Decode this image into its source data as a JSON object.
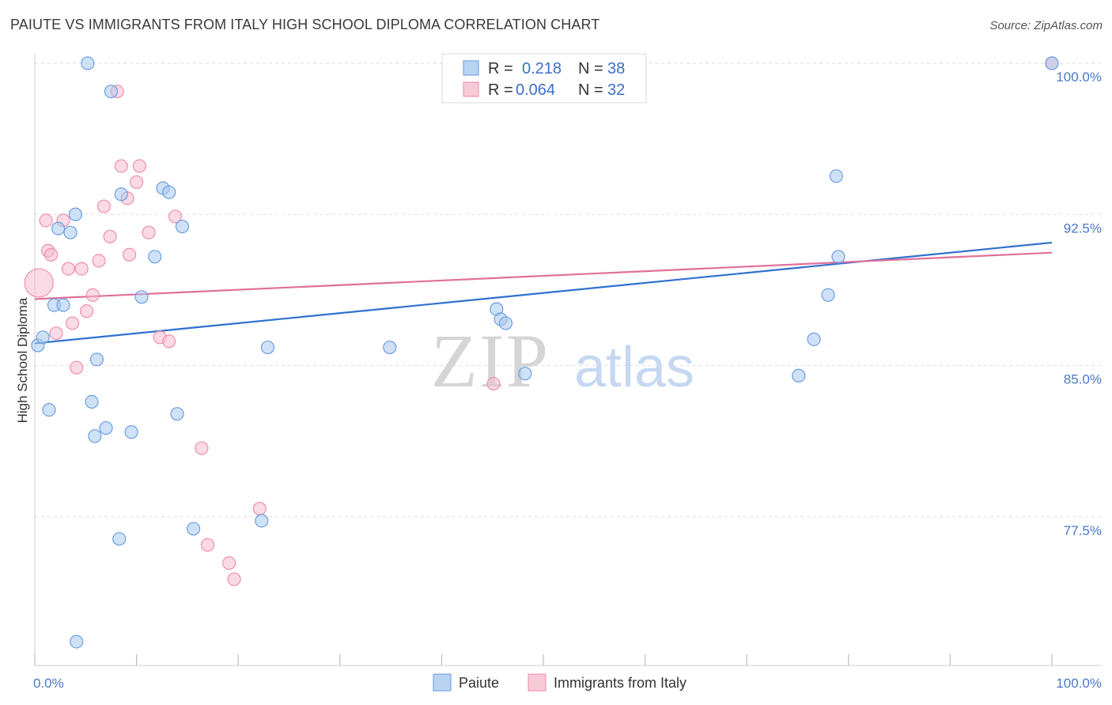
{
  "title": "PAIUTE VS IMMIGRANTS FROM ITALY HIGH SCHOOL DIPLOMA CORRELATION CHART",
  "source": "Source: ZipAtlas.com",
  "watermark": {
    "zip": "ZIP",
    "atlas": "atlas"
  },
  "chart_data": {
    "type": "scatter",
    "title": "PAIUTE VS IMMIGRANTS FROM ITALY HIGH SCHOOL DIPLOMA CORRELATION CHART",
    "xlabel": "",
    "ylabel": "High School Diploma",
    "xlim": [
      0,
      100
    ],
    "ylim": [
      71.0,
      100.8
    ],
    "x_tick_labels": [
      {
        "value": 0,
        "label": "0.0%"
      },
      {
        "value": 100,
        "label": "100.0%"
      }
    ],
    "x_minor_ticks": [
      0,
      10,
      20,
      30,
      40,
      50,
      60,
      70,
      80,
      90,
      100
    ],
    "y_ticks": [
      {
        "value": 100.0,
        "label": "100.0%"
      },
      {
        "value": 92.5,
        "label": "92.5%"
      },
      {
        "value": 85.0,
        "label": "85.0%"
      },
      {
        "value": 77.5,
        "label": "77.5%"
      }
    ],
    "grid": true,
    "legend": {
      "placement": "top-center",
      "rows": [
        {
          "r_label": "R =",
          "r_value": "0.218",
          "n_label": "N =",
          "n_value": "38"
        },
        {
          "r_label": "R =",
          "r_value": "0.064",
          "n_label": "N =",
          "n_value": "32"
        }
      ]
    },
    "series": [
      {
        "name": "Paiute",
        "color": "#a8c8ef",
        "stroke": "#6d9ee0",
        "line_color": "#2f6fcf",
        "r": 0.218,
        "n": 38,
        "trend": {
          "x": [
            0,
            100
          ],
          "y": [
            86.1,
            91.1
          ]
        },
        "points": [
          [
            0.3,
            86.0
          ],
          [
            0.8,
            86.4
          ],
          [
            1.4,
            82.8
          ],
          [
            1.9,
            88.0
          ],
          [
            2.3,
            91.8
          ],
          [
            2.8,
            88.0
          ],
          [
            3.5,
            91.6
          ],
          [
            4.0,
            92.5
          ],
          [
            4.1,
            71.3
          ],
          [
            5.2,
            100.0
          ],
          [
            5.6,
            83.2
          ],
          [
            5.9,
            81.5
          ],
          [
            6.1,
            85.3
          ],
          [
            7.0,
            81.9
          ],
          [
            7.5,
            98.6
          ],
          [
            8.3,
            76.4
          ],
          [
            8.5,
            93.5
          ],
          [
            9.5,
            81.7
          ],
          [
            10.5,
            88.4
          ],
          [
            11.8,
            90.4
          ],
          [
            12.6,
            93.8
          ],
          [
            13.2,
            93.6
          ],
          [
            14.0,
            82.6
          ],
          [
            14.5,
            91.9
          ],
          [
            15.6,
            76.9
          ],
          [
            22.3,
            77.3
          ],
          [
            22.9,
            85.9
          ],
          [
            34.9,
            85.9
          ],
          [
            45.4,
            87.8
          ],
          [
            45.8,
            87.3
          ],
          [
            46.3,
            87.1
          ],
          [
            48.2,
            84.6
          ],
          [
            75.1,
            84.5
          ],
          [
            76.6,
            86.3
          ],
          [
            78.0,
            88.5
          ],
          [
            79.0,
            90.4
          ],
          [
            78.8,
            94.4
          ],
          [
            100.0,
            100.0
          ]
        ]
      },
      {
        "name": "Immigrants from Italy",
        "color": "#f6bccd",
        "stroke": "#ee8fab",
        "line_color": "#e0709a",
        "r": 0.064,
        "n": 32,
        "trend": {
          "x": [
            0,
            100
          ],
          "y": [
            88.3,
            90.6
          ]
        },
        "points": [
          [
            0.4,
            89.1
          ],
          [
            1.1,
            92.2
          ],
          [
            1.3,
            90.7
          ],
          [
            1.6,
            90.5
          ],
          [
            2.1,
            86.6
          ],
          [
            2.8,
            92.2
          ],
          [
            3.3,
            89.8
          ],
          [
            3.7,
            87.1
          ],
          [
            4.1,
            84.9
          ],
          [
            4.6,
            89.8
          ],
          [
            5.1,
            87.7
          ],
          [
            5.7,
            88.5
          ],
          [
            6.3,
            90.2
          ],
          [
            6.8,
            92.9
          ],
          [
            7.4,
            91.4
          ],
          [
            8.1,
            98.6
          ],
          [
            8.5,
            94.9
          ],
          [
            9.1,
            93.3
          ],
          [
            9.3,
            90.5
          ],
          [
            10.0,
            94.1
          ],
          [
            10.3,
            94.9
          ],
          [
            11.2,
            91.6
          ],
          [
            12.3,
            86.4
          ],
          [
            13.2,
            86.2
          ],
          [
            13.8,
            92.4
          ],
          [
            16.4,
            80.9
          ],
          [
            17.0,
            76.1
          ],
          [
            19.1,
            75.2
          ],
          [
            19.6,
            74.4
          ],
          [
            22.1,
            77.9
          ],
          [
            45.1,
            84.1
          ],
          [
            100.0,
            100.0
          ]
        ]
      }
    ]
  }
}
